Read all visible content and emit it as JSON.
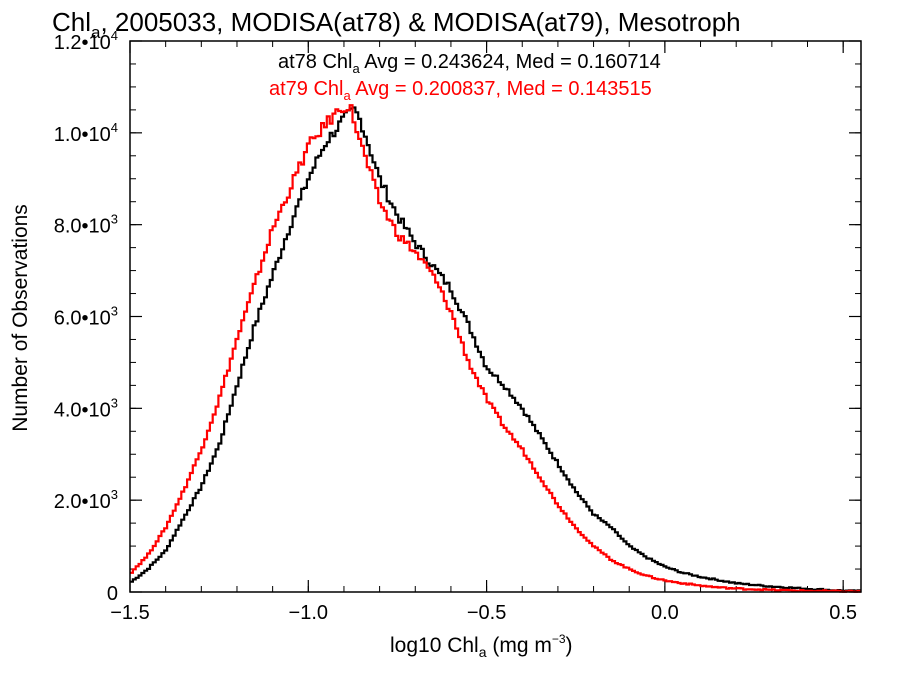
{
  "chart_data": {
    "type": "line",
    "title_main": "Chl",
    "title_sub": "a",
    "title_rest": ", 2005033, MODISA(at78) & MODISA(at79), Mesotroph",
    "xlabel_main": "log10 Chl",
    "xlabel_sub": "a",
    "xlabel_units": " (mg m",
    "xlabel_exp": "−3",
    "xlabel_close": ")",
    "ylabel": "Number of Observations",
    "xlim": [
      -1.5,
      0.55
    ],
    "ylim": [
      0,
      12000
    ],
    "x_ticks": [
      {
        "value": -1.5,
        "label": "−1.5"
      },
      {
        "value": -1.0,
        "label": "−1.0"
      },
      {
        "value": -0.5,
        "label": "−0.5"
      },
      {
        "value": 0.0,
        "label": "0.0"
      },
      {
        "value": 0.5,
        "label": "0.5"
      }
    ],
    "y_ticks": [
      {
        "value": 0,
        "mantissa": "0",
        "exp": ""
      },
      {
        "value": 2000,
        "mantissa": "2.0•10",
        "exp": "3"
      },
      {
        "value": 4000,
        "mantissa": "4.0•10",
        "exp": "3"
      },
      {
        "value": 6000,
        "mantissa": "6.0•10",
        "exp": "3"
      },
      {
        "value": 8000,
        "mantissa": "8.0•10",
        "exp": "3"
      },
      {
        "value": 10000,
        "mantissa": "1.0•10",
        "exp": "4"
      },
      {
        "value": 12000,
        "mantissa": "1.2•10",
        "exp": "4"
      }
    ],
    "annotations": [
      {
        "prefix": "at78 Chl",
        "sub": "a",
        "rest": " Avg = 0.243624, Med = 0.160714",
        "color": "#000000"
      },
      {
        "prefix": "at79 Chl",
        "sub": "a",
        "rest": " Avg = 0.200837, Med = 0.143515",
        "color": "#ff0000"
      }
    ],
    "series": [
      {
        "color": "#000000",
        "x": [
          -1.5,
          -1.45,
          -1.4,
          -1.35,
          -1.3,
          -1.25,
          -1.2,
          -1.15,
          -1.1,
          -1.05,
          -1.0,
          -0.95,
          -0.9,
          -0.87,
          -0.85,
          -0.8,
          -0.75,
          -0.7,
          -0.65,
          -0.6,
          -0.55,
          -0.5,
          -0.45,
          -0.4,
          -0.35,
          -0.3,
          -0.25,
          -0.2,
          -0.15,
          -0.1,
          -0.05,
          0.0,
          0.05,
          0.1,
          0.15,
          0.2,
          0.3,
          0.4,
          0.5,
          0.55
        ],
        "y": [
          200,
          500,
          900,
          1600,
          2300,
          3200,
          4500,
          5800,
          6900,
          8000,
          9000,
          9800,
          10300,
          10500,
          10200,
          9000,
          8200,
          7600,
          7100,
          6600,
          5800,
          4900,
          4500,
          4000,
          3400,
          2800,
          2200,
          1700,
          1400,
          1000,
          750,
          550,
          420,
          330,
          260,
          190,
          120,
          70,
          30,
          20
        ]
      },
      {
        "color": "#ff0000",
        "x": [
          -1.5,
          -1.45,
          -1.4,
          -1.35,
          -1.3,
          -1.25,
          -1.2,
          -1.15,
          -1.1,
          -1.05,
          -1.0,
          -0.95,
          -0.9,
          -0.88,
          -0.85,
          -0.8,
          -0.75,
          -0.7,
          -0.65,
          -0.6,
          -0.55,
          -0.5,
          -0.45,
          -0.4,
          -0.35,
          -0.3,
          -0.25,
          -0.2,
          -0.15,
          -0.1,
          -0.05,
          0.0,
          0.05,
          0.1,
          0.15,
          0.2,
          0.3,
          0.4,
          0.5,
          0.55
        ],
        "y": [
          400,
          800,
          1400,
          2200,
          3100,
          4200,
          5500,
          6700,
          7900,
          8800,
          9700,
          10200,
          10600,
          10500,
          9700,
          8500,
          7800,
          7400,
          6900,
          6100,
          5000,
          4200,
          3600,
          3100,
          2500,
          1900,
          1400,
          1000,
          700,
          500,
          350,
          250,
          190,
          140,
          100,
          75,
          45,
          25,
          15,
          10
        ]
      }
    ],
    "grid": false
  }
}
